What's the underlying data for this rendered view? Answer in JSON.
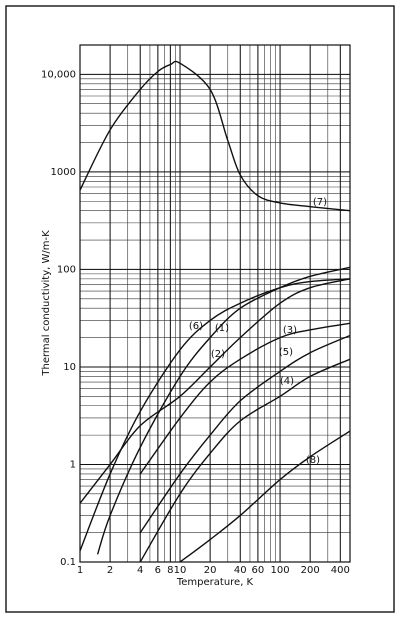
{
  "chart_data": {
    "type": "line",
    "y_label": "Thermal conductivity, W/m-K",
    "x_label": "Temperature, K",
    "xscale": "log",
    "yscale": "log",
    "grid": true,
    "minor_grid": true,
    "xlim": [
      1,
      500
    ],
    "ylim": [
      0.1,
      20000
    ],
    "xticks": [
      1,
      2,
      4,
      6,
      8,
      10,
      20,
      40,
      60,
      100,
      200,
      400
    ],
    "yticks": [
      0.1,
      1,
      10,
      100,
      1000,
      {
        "value": 10000,
        "label": "10,000"
      }
    ],
    "color": "#111111",
    "series": [
      {
        "name": "(1)",
        "x": [
          1.5,
          2,
          4,
          10,
          20,
          40,
          100,
          200,
          500
        ],
        "values": [
          0.12,
          0.3,
          1.5,
          8,
          20,
          40,
          65,
          85,
          105
        ]
      },
      {
        "name": "(2)",
        "x": [
          1,
          2,
          4,
          10,
          20,
          40,
          100,
          200,
          500
        ],
        "values": [
          0.4,
          1,
          2.5,
          5,
          10,
          20,
          45,
          65,
          80
        ]
      },
      {
        "name": "(3)",
        "x": [
          4,
          10,
          20,
          40,
          100,
          200,
          500
        ],
        "values": [
          0.8,
          3,
          7,
          12,
          20,
          24,
          28
        ]
      },
      {
        "name": "(4)",
        "x": [
          4,
          10,
          20,
          40,
          100,
          200,
          500
        ],
        "values": [
          0.1,
          0.5,
          1.3,
          2.8,
          5,
          8,
          12
        ]
      },
      {
        "name": "(5)",
        "x": [
          4,
          10,
          20,
          40,
          100,
          200,
          500
        ],
        "values": [
          0.2,
          0.8,
          2,
          4.5,
          9,
          14,
          21
        ]
      },
      {
        "name": "(6)",
        "x": [
          1,
          2,
          4,
          10,
          20,
          40,
          100,
          200,
          500
        ],
        "values": [
          0.13,
          0.8,
          3.5,
          15,
          30,
          45,
          65,
          75,
          80
        ]
      },
      {
        "name": "(7)",
        "x": [
          1,
          2,
          4,
          6,
          8,
          10,
          20,
          30,
          40,
          60,
          100,
          200,
          500
        ],
        "values": [
          650,
          2700,
          7000,
          10700,
          12600,
          13000,
          7000,
          2100,
          930,
          570,
          480,
          440,
          400
        ]
      },
      {
        "name": "(8)",
        "x": [
          10,
          20,
          40,
          100,
          200,
          500
        ],
        "values": [
          0.1,
          0.17,
          0.3,
          0.7,
          1.2,
          2.2
        ]
      }
    ]
  }
}
